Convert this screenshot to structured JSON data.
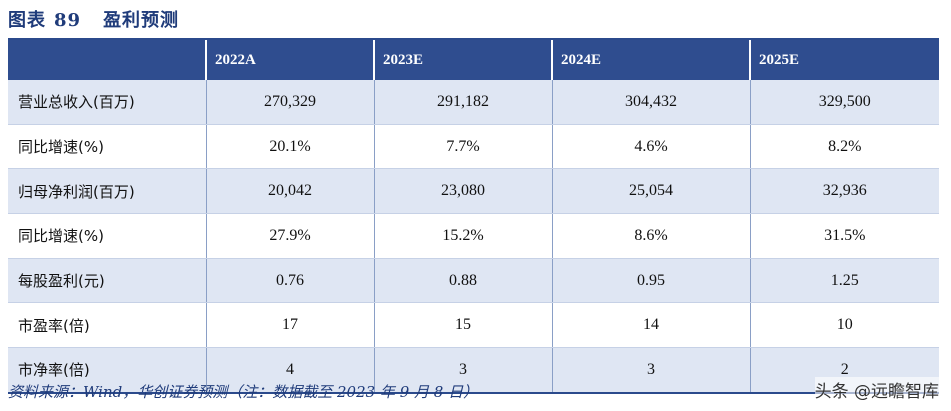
{
  "figure": {
    "label": "图表",
    "number": "89",
    "title": "盈利预测"
  },
  "table": {
    "columns": [
      "",
      "2022A",
      "2023E",
      "2024E",
      "2025E"
    ],
    "rows": [
      {
        "label": "营业总收入(百万)",
        "values": [
          "270,329",
          "291,182",
          "304,432",
          "329,500"
        ]
      },
      {
        "label": "同比增速(%)",
        "values": [
          "20.1%",
          "7.7%",
          "4.6%",
          "8.2%"
        ]
      },
      {
        "label": "归母净利润(百万)",
        "values": [
          "20,042",
          "23,080",
          "25,054",
          "32,936"
        ]
      },
      {
        "label": "同比增速(%)",
        "values": [
          "27.9%",
          "15.2%",
          "8.6%",
          "31.5%"
        ]
      },
      {
        "label": "每股盈利(元)",
        "values": [
          "0.76",
          "0.88",
          "0.95",
          "1.25"
        ]
      },
      {
        "label": "市盈率(倍)",
        "values": [
          "17",
          "15",
          "14",
          "10"
        ]
      },
      {
        "label": "市净率(倍)",
        "values": [
          "4",
          "3",
          "3",
          "2"
        ]
      }
    ]
  },
  "source": "资料来源：Wind，华创证券预测（注：数据截至 2023 年 9 月 8 日）",
  "watermark": "头条 @远瞻智库"
}
